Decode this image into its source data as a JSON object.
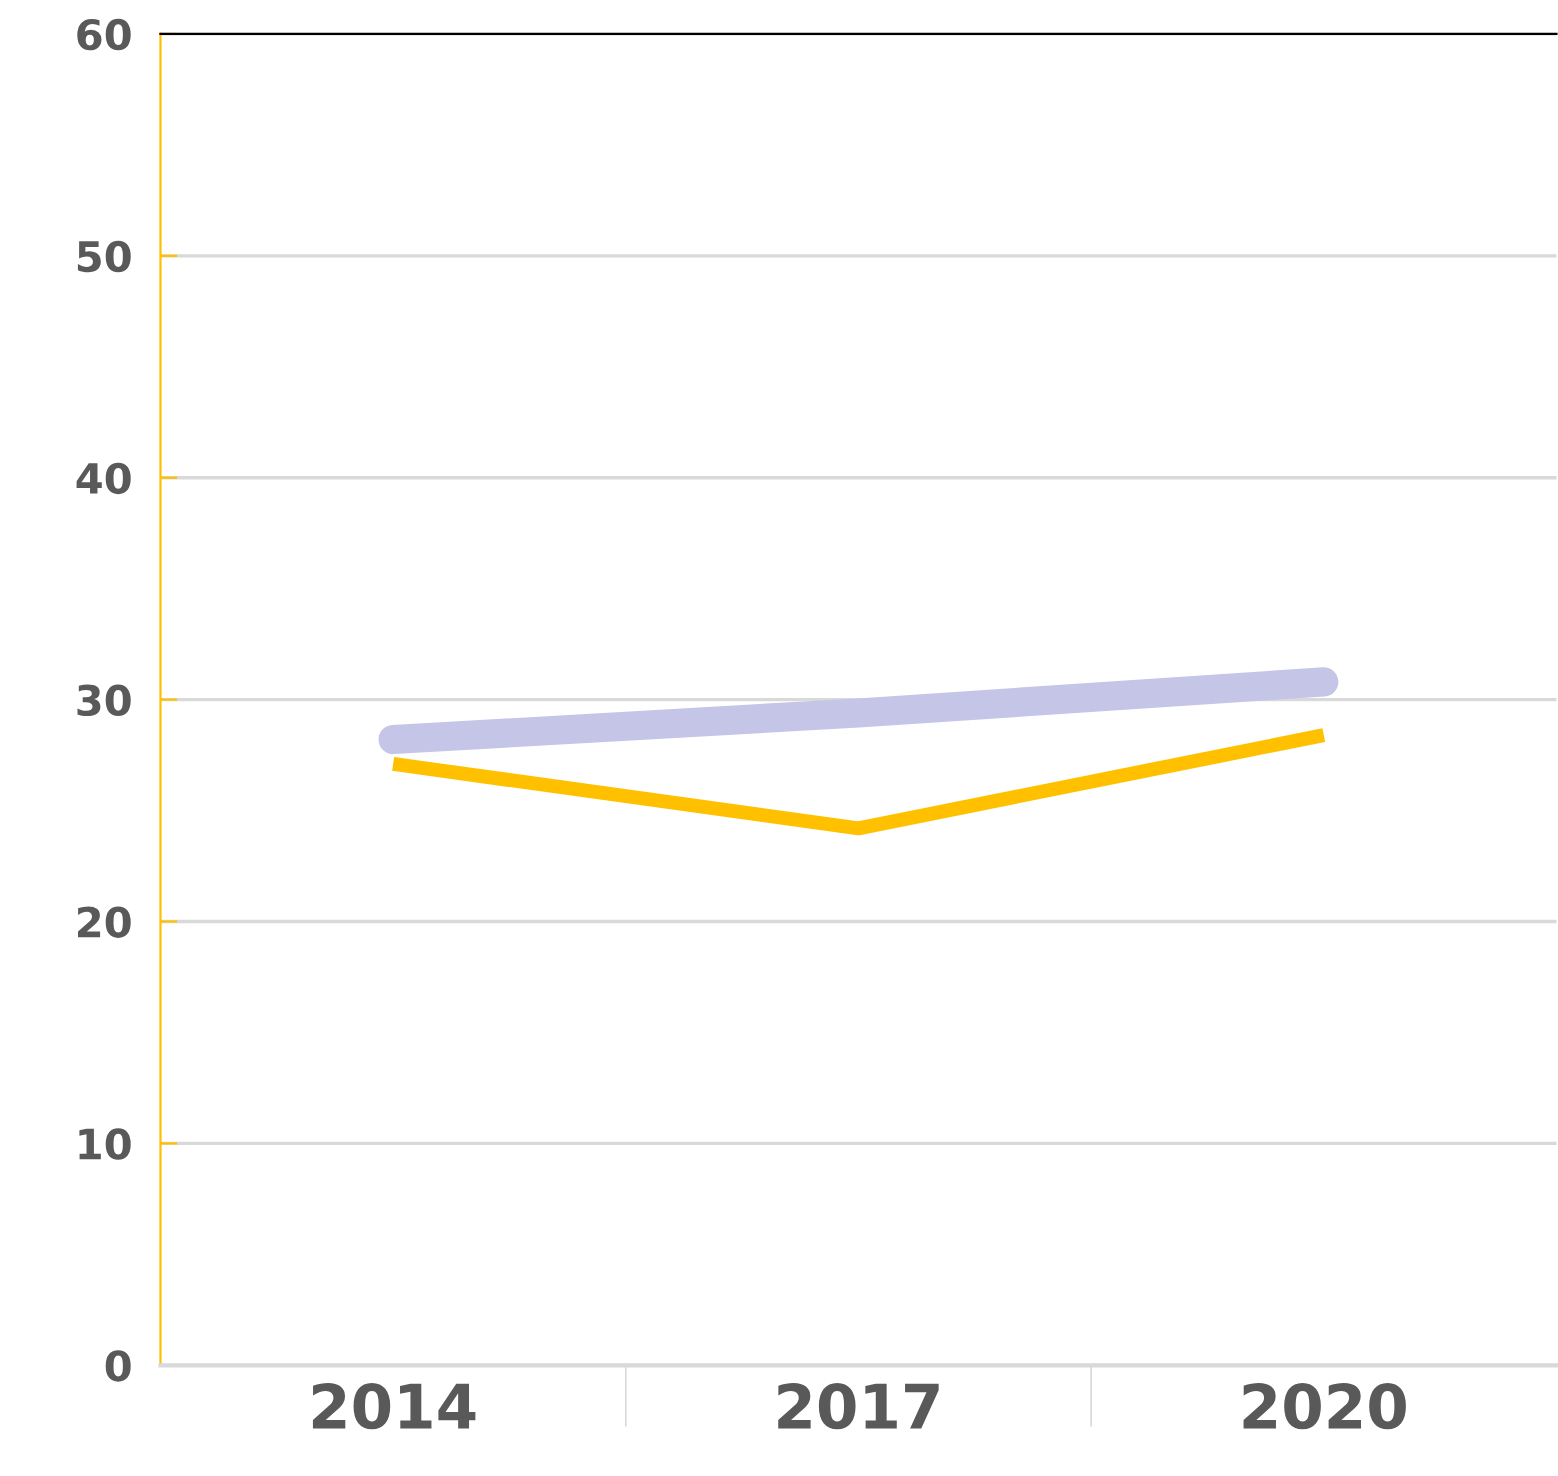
{
  "chart_data": {
    "type": "line",
    "categories": [
      "2014",
      "2017",
      "2020"
    ],
    "series": [
      {
        "color": "#c5c5e8",
        "values": [
          28.2,
          29.4,
          30.8
        ]
      },
      {
        "color": "#ffc000",
        "values": [
          27.1,
          24.2,
          28.4
        ]
      }
    ],
    "ylim": [
      0,
      60
    ],
    "yticks": [
      0,
      10,
      20,
      30,
      40,
      50,
      60
    ],
    "grid": "y",
    "legend": false,
    "marker": "none",
    "line_style": "solid"
  }
}
